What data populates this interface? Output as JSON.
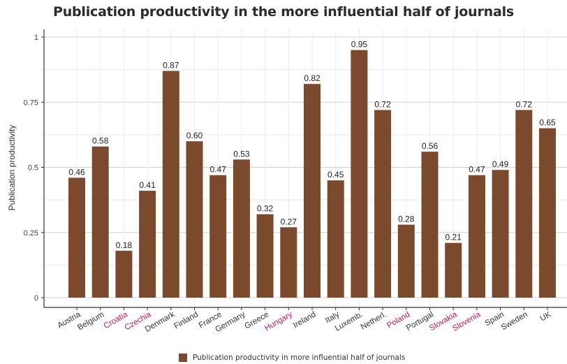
{
  "chart_data": {
    "type": "bar",
    "title": "Publication productivity in the more influential half of journals",
    "xlabel": "",
    "ylabel": "Publication productivity",
    "ylim": [
      0,
      1.05
    ],
    "yticks": [
      0,
      0.25,
      0.5,
      0.75,
      1
    ],
    "ytick_labels": [
      "0",
      "0.25",
      "0.5",
      "0.75",
      "1"
    ],
    "grid": true,
    "legend_position": "bottom",
    "bar_color": "#7b4a2d",
    "highlight_label_color": "#c2185b",
    "default_label_color": "#333333",
    "categories": [
      "Austria",
      "Belgium",
      "Croatia",
      "Czechia",
      "Denmark",
      "Finland",
      "France",
      "Germany",
      "Greece",
      "Hungary",
      "Ireland",
      "Italy",
      "Luxemb.",
      "Netherl.",
      "Poland",
      "Portugal",
      "Slovakia",
      "Slovenia",
      "Spain",
      "Sweden",
      "UK"
    ],
    "highlighted_categories": [
      "Croatia",
      "Czechia",
      "Hungary",
      "Poland",
      "Slovakia",
      "Slovenia"
    ],
    "series": [
      {
        "name": "Publication productivity in more influential half of journals",
        "values": [
          0.46,
          0.58,
          0.18,
          0.41,
          0.87,
          0.6,
          0.47,
          0.53,
          0.32,
          0.27,
          0.82,
          0.45,
          0.95,
          0.72,
          0.28,
          0.56,
          0.21,
          0.47,
          0.49,
          0.72,
          0.65
        ],
        "value_labels": [
          "0.46",
          "0.58",
          "0.18",
          "0.41",
          "0.87",
          "0.60",
          "0.47",
          "0.53",
          "0.32",
          "0.27",
          "0.82",
          "0.45",
          "0.95",
          "0.72",
          "0.28",
          "0.56",
          "0.21",
          "0.47",
          "0.49",
          "0.72",
          "0.65"
        ]
      }
    ]
  }
}
